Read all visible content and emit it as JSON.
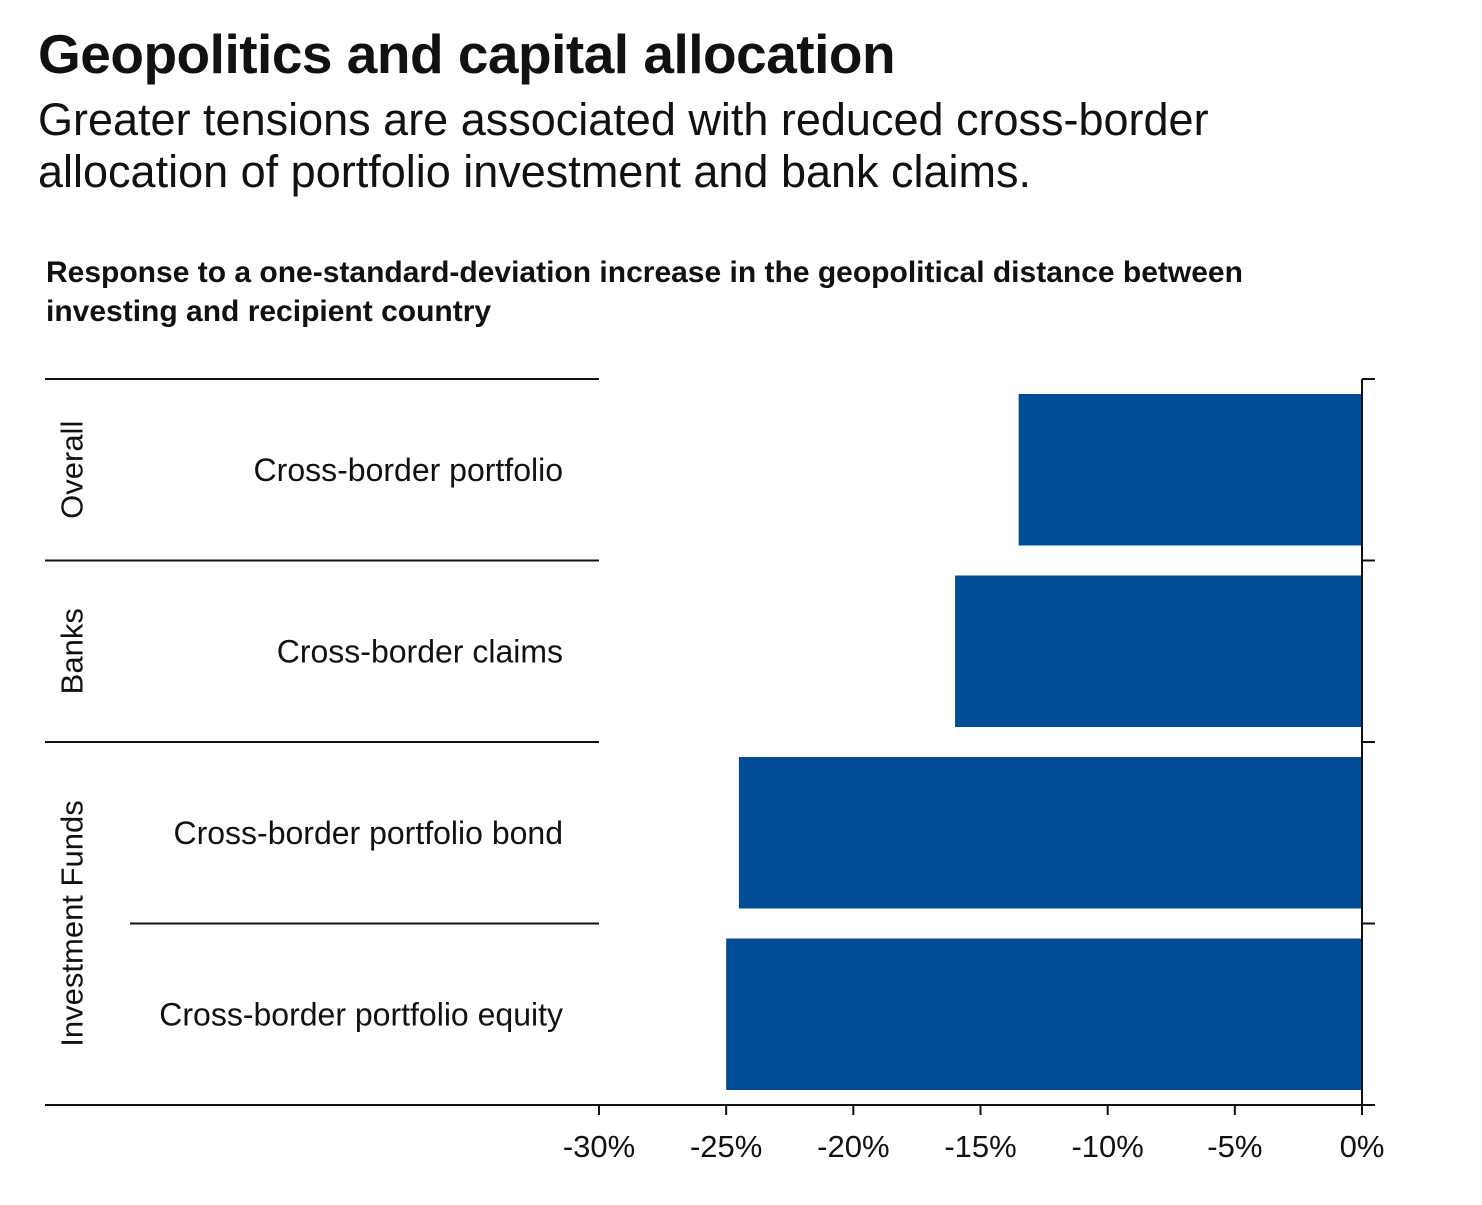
{
  "header": {
    "title": "Geopolitics and capital allocation",
    "subtitle": "Greater tensions are associated with reduced cross-border allocation of portfolio investment and bank claims."
  },
  "chart_data": {
    "type": "bar",
    "orientation": "horizontal",
    "title": "Response to a one-standard-deviation increase in the geopolitical distance between investing and recipient country",
    "xlabel": "",
    "ylabel": "",
    "xlim": [
      -30,
      0
    ],
    "x_ticks": [
      "-30%",
      "-25%",
      "-20%",
      "-15%",
      "-10%",
      "-5%",
      "0%"
    ],
    "x_tick_values": [
      -30,
      -25,
      -20,
      -15,
      -10,
      -5,
      0
    ],
    "groups": [
      {
        "name": "Overall",
        "categories": [
          "Cross-border portfolio"
        ]
      },
      {
        "name": "Banks",
        "categories": [
          "Cross-border claims"
        ]
      },
      {
        "name": "Investment Funds",
        "categories": [
          "Cross-border portfolio bond",
          "Cross-border portfolio equity"
        ]
      }
    ],
    "categories": [
      "Cross-border portfolio",
      "Cross-border claims",
      "Cross-border portfolio bond",
      "Cross-border portfolio equity"
    ],
    "values": [
      -13.5,
      -16.0,
      -24.5,
      -25.0
    ],
    "bar_color": "#004C97",
    "grid": false,
    "legend": "none"
  }
}
